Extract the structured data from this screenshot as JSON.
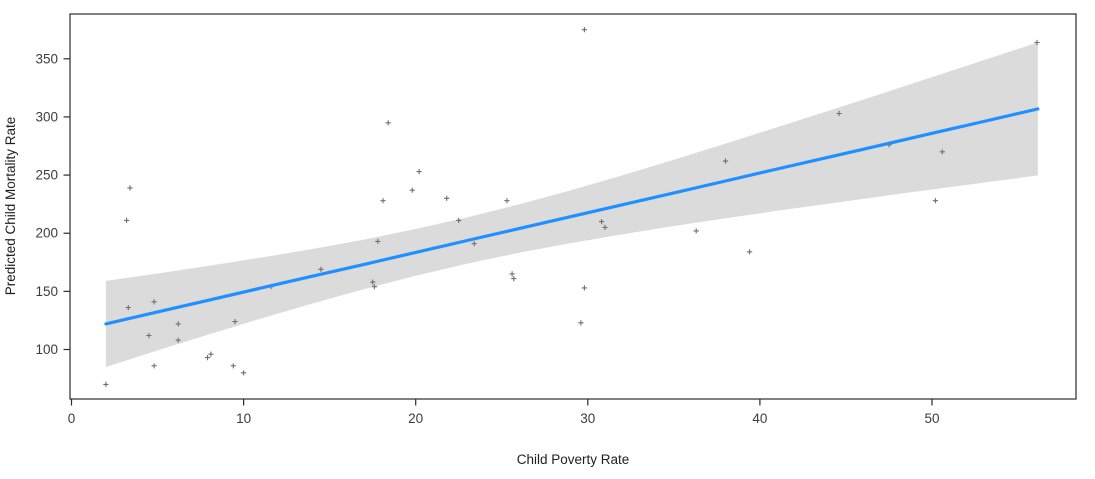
{
  "chart_data": {
    "type": "scatter",
    "title": "",
    "xlabel": "Child Poverty Rate",
    "ylabel": "Predicted Child Mortality Rate",
    "xlim": [
      -0.1,
      58.3
    ],
    "ylim": [
      57,
      389
    ],
    "x_ticks": [
      0,
      10,
      20,
      30,
      40,
      50
    ],
    "y_ticks": [
      100,
      150,
      200,
      250,
      300,
      350
    ],
    "grid": false,
    "legend": null,
    "point_symbol": "plus",
    "colors": {
      "points": "#6F6F6F",
      "trend_line": "#1E90FF",
      "confidence_band": "#DBDBDB",
      "axis": "#2B2B2B",
      "tick_text": "#3C3C3C",
      "background": "#FFFFFF"
    },
    "points": [
      [
        2.0,
        70
      ],
      [
        3.2,
        211
      ],
      [
        3.3,
        136
      ],
      [
        3.4,
        239
      ],
      [
        4.5,
        112
      ],
      [
        4.8,
        141
      ],
      [
        4.8,
        86
      ],
      [
        6.2,
        122
      ],
      [
        6.2,
        108
      ],
      [
        7.9,
        93
      ],
      [
        8.1,
        96
      ],
      [
        9.4,
        86
      ],
      [
        9.5,
        124
      ],
      [
        10.0,
        80
      ],
      [
        11.6,
        154
      ],
      [
        14.5,
        169
      ],
      [
        17.5,
        158
      ],
      [
        17.6,
        154
      ],
      [
        17.8,
        193
      ],
      [
        18.1,
        228
      ],
      [
        18.4,
        295
      ],
      [
        19.8,
        237
      ],
      [
        20.2,
        253
      ],
      [
        21.8,
        230
      ],
      [
        22.5,
        211
      ],
      [
        23.4,
        191
      ],
      [
        25.3,
        228
      ],
      [
        25.6,
        165
      ],
      [
        25.7,
        161
      ],
      [
        29.6,
        123
      ],
      [
        29.8,
        153
      ],
      [
        29.8,
        375
      ],
      [
        30.8,
        210
      ],
      [
        31.0,
        205
      ],
      [
        36.3,
        202
      ],
      [
        38.0,
        262
      ],
      [
        39.4,
        184
      ],
      [
        44.6,
        303
      ],
      [
        47.5,
        276
      ],
      [
        50.2,
        228
      ],
      [
        50.6,
        270
      ],
      [
        56.1,
        364
      ]
    ],
    "trend": {
      "fit": "linear",
      "intercept": 115.2,
      "slope": 3.414,
      "x": [
        2,
        5,
        8,
        11,
        14,
        17,
        20,
        23,
        26,
        29,
        32,
        35,
        38,
        41,
        44,
        47,
        50,
        53,
        56,
        56.15
      ],
      "y": [
        122.0,
        132.3,
        142.5,
        152.8,
        163.0,
        173.2,
        183.5,
        193.7,
        204.0,
        214.2,
        224.4,
        234.7,
        244.9,
        255.2,
        265.4,
        275.6,
        285.9,
        296.1,
        306.4,
        306.9
      ]
    },
    "band": {
      "x": [
        2,
        5,
        8,
        11,
        14,
        17,
        20,
        23,
        26,
        29,
        32,
        35,
        38,
        41,
        44,
        47,
        50,
        53,
        56,
        56.15
      ],
      "upper": [
        159.0,
        165.4,
        172.0,
        179.0,
        186.4,
        194.5,
        203.6,
        213.6,
        224.8,
        236.9,
        249.8,
        263.2,
        277.0,
        291.1,
        305.3,
        319.6,
        334.2,
        348.7,
        363.4,
        364.0
      ],
      "lower": [
        85.0,
        99.2,
        113.0,
        126.6,
        139.6,
        151.9,
        163.4,
        173.8,
        183.2,
        191.5,
        199.0,
        206.2,
        212.8,
        219.3,
        225.5,
        231.6,
        237.6,
        243.5,
        249.4,
        249.7
      ]
    }
  }
}
